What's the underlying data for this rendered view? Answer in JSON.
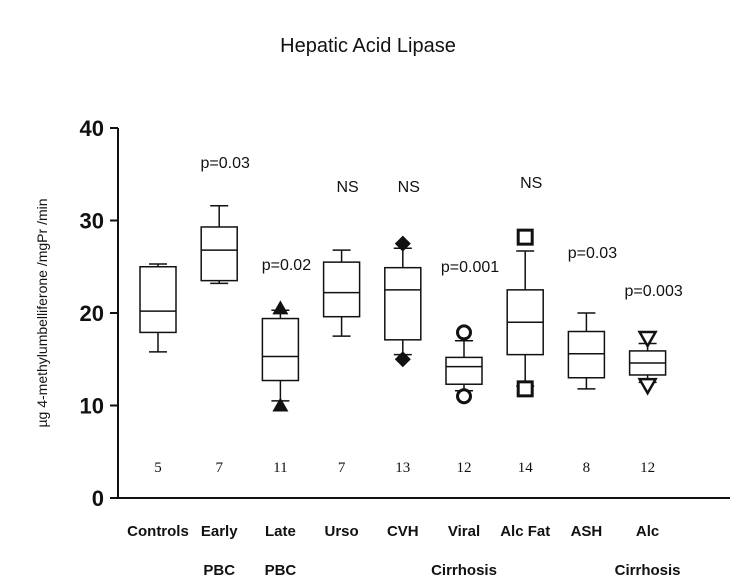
{
  "chart_data": {
    "type": "box",
    "title": "Hepatic Acid Lipase",
    "ylabel": "µg 4-methylumbelliferone /mgPr /min",
    "xlabel": "",
    "ylim": [
      0,
      40
    ],
    "yticks": [
      "0",
      "10",
      "20",
      "30",
      "40"
    ],
    "grid": false,
    "groups": [
      {
        "label_line1": "Controls",
        "label_line2": "",
        "n": "5",
        "annotation": "",
        "whisker_low": 15.8,
        "q1": 17.9,
        "median": 20.2,
        "q3": 25.0,
        "whisker_high": 25.3,
        "outliers": [],
        "marker": ""
      },
      {
        "label_line1": "Early",
        "label_line2": "PBC",
        "n": "7",
        "annotation": "p=0.03",
        "whisker_low": 23.2,
        "q1": 23.5,
        "median": 26.8,
        "q3": 29.3,
        "whisker_high": 31.6,
        "outliers": [],
        "marker": ""
      },
      {
        "label_line1": "Late",
        "label_line2": "PBC",
        "n": "11",
        "annotation": "p=0.02",
        "whisker_low": 10.5,
        "q1": 12.7,
        "median": 15.3,
        "q3": 19.4,
        "whisker_high": 20.3,
        "outliers": [
          10.0,
          20.5
        ],
        "marker": "triangle-up"
      },
      {
        "label_line1": "Urso",
        "label_line2": "",
        "n": "7",
        "annotation": "NS",
        "whisker_low": 17.5,
        "q1": 19.6,
        "median": 22.2,
        "q3": 25.5,
        "whisker_high": 26.8,
        "outliers": [],
        "marker": ""
      },
      {
        "label_line1": "CVH",
        "label_line2": "",
        "n": "13",
        "annotation": "NS",
        "whisker_low": 15.5,
        "q1": 17.1,
        "median": 22.5,
        "q3": 24.9,
        "whisker_high": 27.0,
        "outliers": [
          15.0,
          27.5
        ],
        "marker": "diamond"
      },
      {
        "label_line1": "Viral",
        "label_line2": "Cirrhosis",
        "n": "12",
        "annotation": "p=0.001",
        "whisker_low": 11.6,
        "q1": 12.3,
        "median": 14.2,
        "q3": 15.2,
        "whisker_high": 17.0,
        "outliers": [
          11.0,
          17.9
        ],
        "marker": "circle"
      },
      {
        "label_line1": "Alc Fat",
        "label_line2": "",
        "n": "14",
        "annotation": "NS",
        "whisker_low": 12.1,
        "q1": 15.5,
        "median": 19.0,
        "q3": 22.5,
        "whisker_high": 26.7,
        "outliers": [
          11.8,
          28.2
        ],
        "marker": "square"
      },
      {
        "label_line1": "ASH",
        "label_line2": "",
        "n": "8",
        "annotation": "p=0.03",
        "whisker_low": 11.8,
        "q1": 13.0,
        "median": 15.6,
        "q3": 18.0,
        "whisker_high": 20.0,
        "outliers": [],
        "marker": ""
      },
      {
        "label_line1": "Alc",
        "label_line2": "Cirrhosis",
        "n": "12",
        "annotation": "p=0.003",
        "whisker_low": 12.5,
        "q1": 13.3,
        "median": 14.6,
        "q3": 15.9,
        "whisker_high": 16.7,
        "outliers": [
          12.2,
          17.3
        ],
        "marker": "triangle-down"
      }
    ]
  }
}
